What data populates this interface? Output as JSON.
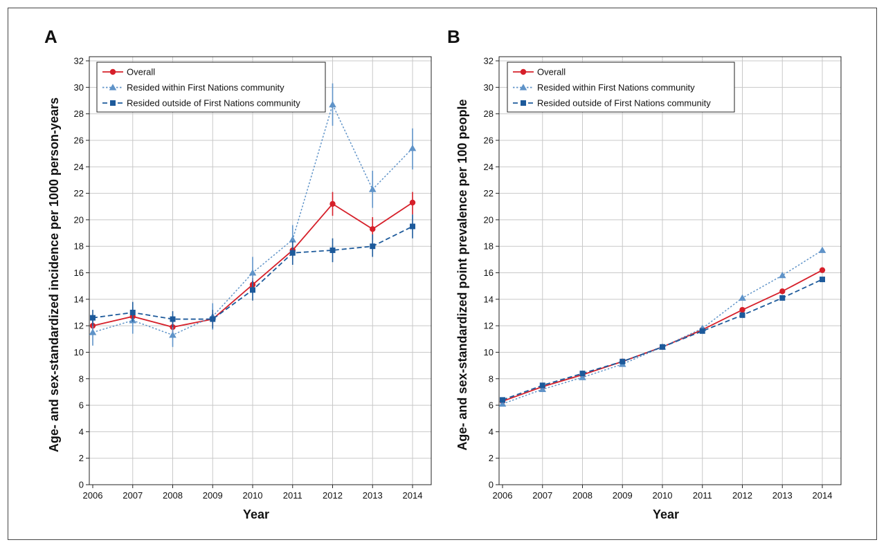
{
  "figure": {
    "panels": [
      "A",
      "B"
    ]
  },
  "chart_data": [
    {
      "type": "line",
      "panel_label": "A",
      "xlabel": "Year",
      "ylabel": "Age- and sex-standardized incidence per 1000 person-years",
      "categories": [
        "2006",
        "2007",
        "2008",
        "2009",
        "2010",
        "2011",
        "2012",
        "2013",
        "2014"
      ],
      "ylim": [
        0,
        32
      ],
      "yticks": [
        0,
        2,
        4,
        6,
        8,
        10,
        12,
        14,
        16,
        18,
        20,
        22,
        24,
        26,
        28,
        30,
        32
      ],
      "grid": true,
      "legend_position": "top-left",
      "series": [
        {
          "name": "Overall",
          "color": "#d6202a",
          "marker": "circle",
          "dash": "solid",
          "values": [
            12.0,
            12.7,
            11.9,
            12.5,
            15.1,
            17.7,
            21.2,
            19.3,
            21.3
          ],
          "error_low": [
            11.6,
            12.3,
            11.5,
            12.0,
            14.6,
            17.1,
            20.3,
            18.5,
            20.4
          ],
          "error_high": [
            12.5,
            13.2,
            12.4,
            13.0,
            15.6,
            18.3,
            22.1,
            20.2,
            22.1
          ]
        },
        {
          "name": "Resided within First Nations community",
          "color": "#5f93c8",
          "marker": "triangle",
          "dash": "dotted",
          "values": [
            11.5,
            12.4,
            11.3,
            12.7,
            16.0,
            18.5,
            28.7,
            22.3,
            25.4
          ],
          "error_low": [
            10.5,
            11.4,
            10.4,
            11.7,
            15.0,
            17.4,
            27.1,
            20.9,
            23.8
          ],
          "error_high": [
            12.5,
            13.4,
            12.3,
            13.7,
            17.2,
            19.6,
            30.3,
            23.7,
            26.9
          ]
        },
        {
          "name": "Resided outside of First Nations community",
          "color": "#1d5a9b",
          "marker": "square",
          "dash": "dashed",
          "values": [
            12.6,
            13.0,
            12.5,
            12.5,
            14.7,
            17.5,
            17.7,
            18.0,
            19.5
          ],
          "error_low": [
            12.0,
            12.3,
            11.9,
            11.8,
            13.9,
            16.6,
            16.8,
            17.2,
            18.6
          ],
          "error_high": [
            13.2,
            13.8,
            13.1,
            13.2,
            15.4,
            18.4,
            18.6,
            18.9,
            20.4
          ]
        }
      ]
    },
    {
      "type": "line",
      "panel_label": "B",
      "xlabel": "Year",
      "ylabel": "Age- and sex-standardized point prevalence per 100 people",
      "categories": [
        "2006",
        "2007",
        "2008",
        "2009",
        "2010",
        "2011",
        "2012",
        "2013",
        "2014"
      ],
      "ylim": [
        0,
        32
      ],
      "yticks": [
        0,
        2,
        4,
        6,
        8,
        10,
        12,
        14,
        16,
        18,
        20,
        22,
        24,
        26,
        28,
        30,
        32
      ],
      "grid": true,
      "legend_position": "top-left",
      "series": [
        {
          "name": "Overall",
          "color": "#d6202a",
          "marker": "circle",
          "dash": "solid",
          "values": [
            6.3,
            7.4,
            8.3,
            9.3,
            10.4,
            11.7,
            13.2,
            14.6,
            16.2
          ]
        },
        {
          "name": "Resided within First Nations community",
          "color": "#5f93c8",
          "marker": "triangle",
          "dash": "dotted",
          "values": [
            6.1,
            7.2,
            8.1,
            9.1,
            10.4,
            11.8,
            14.1,
            15.8,
            17.7
          ]
        },
        {
          "name": "Resided outside of First Nations community",
          "color": "#1d5a9b",
          "marker": "square",
          "dash": "dashed",
          "values": [
            6.4,
            7.5,
            8.4,
            9.3,
            10.4,
            11.6,
            12.8,
            14.1,
            15.5
          ]
        }
      ]
    }
  ]
}
